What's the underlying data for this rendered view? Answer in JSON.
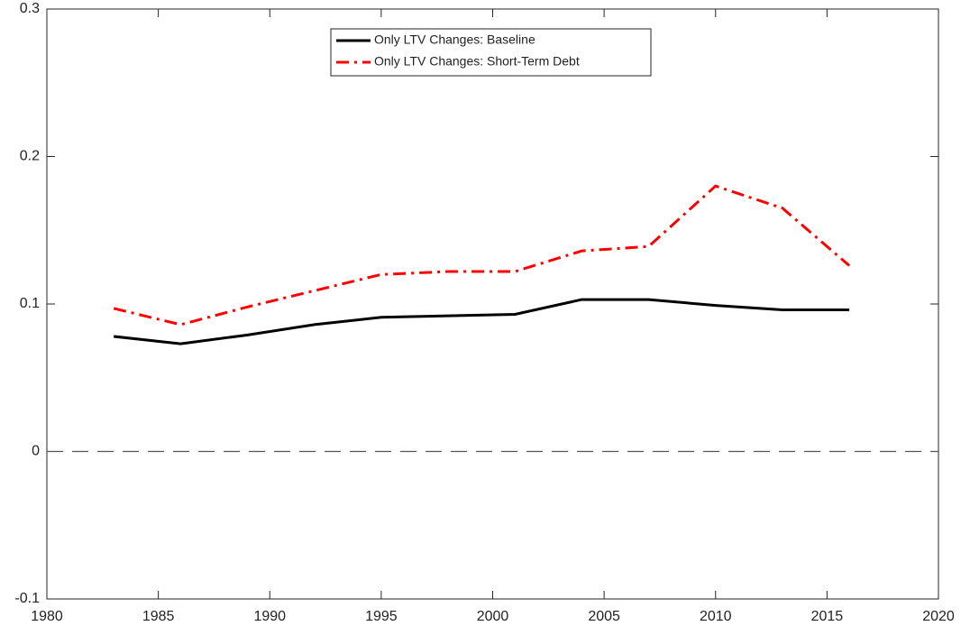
{
  "chart_data": {
    "type": "line",
    "x": [
      1983,
      1986,
      1989,
      1992,
      1995,
      1998,
      2001,
      2004,
      2007,
      2010,
      2013,
      2016
    ],
    "series": [
      {
        "name": "Only LTV Changes: Baseline",
        "color": "#000000",
        "dash": "solid",
        "values": [
          0.078,
          0.073,
          0.079,
          0.086,
          0.091,
          0.092,
          0.093,
          0.103,
          0.103,
          0.099,
          0.096,
          0.096
        ]
      },
      {
        "name": "Only LTV Changes: Short-Term Debt",
        "color": "#ff0000",
        "dash": "dashdot",
        "values": [
          0.097,
          0.086,
          0.098,
          0.109,
          0.12,
          0.122,
          0.122,
          0.136,
          0.139,
          0.18,
          0.165,
          0.126
        ]
      }
    ],
    "xlim": [
      1980,
      2020
    ],
    "xticks": [
      1980,
      1985,
      1990,
      1995,
      2000,
      2005,
      2010,
      2015,
      2020
    ],
    "ylim": [
      -0.1,
      0.3
    ],
    "yticks": [
      -0.1,
      0,
      0.1,
      0.2,
      0.3
    ],
    "zero_line": true,
    "grid": false,
    "legend": "top"
  }
}
